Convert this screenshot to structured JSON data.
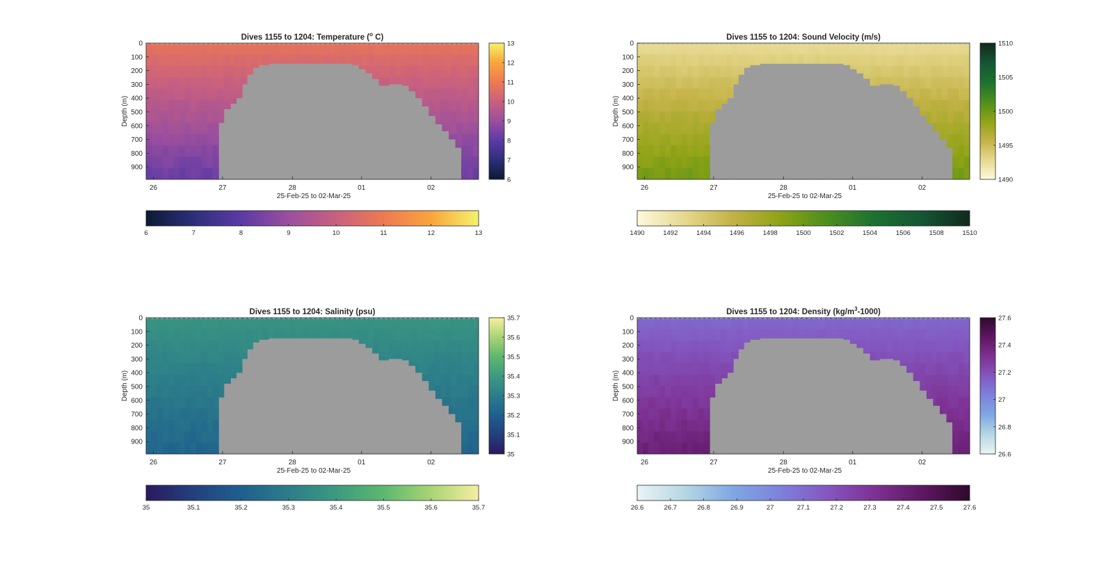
{
  "chart_data": [
    {
      "type": "heatmap",
      "title_main": "Dives 1155 to 1204: Temperature (",
      "title_sup": "o",
      "title_end": " C)",
      "ylabel": "Depth (m)",
      "xlabel": "25-Feb-25 to 02-Mar-25",
      "x_ticks": [
        "26",
        "27",
        "28",
        "01",
        "02"
      ],
      "y_ticks": [
        "0",
        "100",
        "200",
        "300",
        "400",
        "500",
        "600",
        "700",
        "800",
        "900"
      ],
      "ylim": [
        0,
        990
      ],
      "colorbar_ticks": [
        "6",
        "7",
        "8",
        "9",
        "10",
        "11",
        "12",
        "13"
      ],
      "horizontal_colorbar_ticks": [
        "6",
        "7",
        "8",
        "9",
        "10",
        "11",
        "12",
        "13"
      ],
      "clim": [
        6,
        13
      ],
      "colormap": [
        "#0b1a33",
        "#2d2f7a",
        "#5b3aa6",
        "#9a4f9e",
        "#c9607f",
        "#ee7a52",
        "#f9a53c",
        "#f4f36b"
      ],
      "surface_value": 10.8,
      "deep_value": 8.2,
      "nodata_color": "#9c9c9c"
    },
    {
      "type": "heatmap",
      "title_main": "Dives 1155 to 1204: Sound Velocity (m/s)",
      "ylabel": "Depth (m)",
      "xlabel": "25-Feb-25 to 02-Mar-25",
      "x_ticks": [
        "26",
        "27",
        "28",
        "01",
        "02"
      ],
      "y_ticks": [
        "0",
        "100",
        "200",
        "300",
        "400",
        "500",
        "600",
        "700",
        "800",
        "900"
      ],
      "ylim": [
        0,
        990
      ],
      "colorbar_ticks": [
        "1490",
        "1495",
        "1500",
        "1505",
        "1510"
      ],
      "horizontal_colorbar_ticks": [
        "1490",
        "1492",
        "1494",
        "1496",
        "1498",
        "1500",
        "1502",
        "1504",
        "1506",
        "1508",
        "1510"
      ],
      "clim": [
        1490,
        1510
      ],
      "colormap": [
        "#fdf9dc",
        "#e6d88e",
        "#c3b246",
        "#8fa315",
        "#4c8e1e",
        "#1c7130",
        "#155533",
        "#112a1c"
      ],
      "surface_value": 1492.5,
      "deep_value": 1499.8,
      "nodata_color": "#9c9c9c"
    },
    {
      "type": "heatmap",
      "title_main": "Dives 1155 to 1204: Salinity (psu)",
      "ylabel": "Depth (m)",
      "xlabel": "25-Feb-25 to 02-Mar-25",
      "x_ticks": [
        "26",
        "27",
        "28",
        "01",
        "02"
      ],
      "y_ticks": [
        "0",
        "100",
        "200",
        "300",
        "400",
        "500",
        "600",
        "700",
        "800",
        "900"
      ],
      "ylim": [
        0,
        990
      ],
      "colorbar_ticks": [
        "35",
        "35.1",
        "35.2",
        "35.3",
        "35.4",
        "35.5",
        "35.6",
        "35.7"
      ],
      "horizontal_colorbar_ticks": [
        "35",
        "35.1",
        "35.2",
        "35.3",
        "35.4",
        "35.5",
        "35.6",
        "35.7"
      ],
      "clim": [
        35,
        35.7
      ],
      "colormap": [
        "#2a1a5e",
        "#23407e",
        "#1f5f8e",
        "#2c7d8a",
        "#3c9a80",
        "#5cb86e",
        "#a9d474",
        "#f6eea2"
      ],
      "surface_value": 35.38,
      "deep_value": 35.22,
      "nodata_color": "#9c9c9c"
    },
    {
      "type": "heatmap",
      "title_main": "Dives 1155 to 1204: Density (kg/m",
      "title_sup": "3",
      "title_end": "-1000)",
      "ylabel": "Depth (m)",
      "xlabel": "25-Feb-25 to 02-Mar-25",
      "x_ticks": [
        "26",
        "27",
        "28",
        "01",
        "02"
      ],
      "y_ticks": [
        "0",
        "100",
        "200",
        "300",
        "400",
        "500",
        "600",
        "700",
        "800",
        "900"
      ],
      "ylim": [
        0,
        990
      ],
      "colorbar_ticks": [
        "26.6",
        "26.8",
        "27",
        "27.2",
        "27.4",
        "27.6"
      ],
      "horizontal_colorbar_ticks": [
        "26.6",
        "26.7",
        "26.8",
        "26.9",
        "27",
        "27.1",
        "27.2",
        "27.3",
        "27.4",
        "27.5",
        "27.6"
      ],
      "clim": [
        26.6,
        27.6
      ],
      "colormap": [
        "#eaf4f4",
        "#b6d7e4",
        "#7fa8e3",
        "#7d82dc",
        "#8457c0",
        "#7e3192",
        "#5e1762",
        "#2e0a2b"
      ],
      "surface_value": 27.11,
      "deep_value": 27.4,
      "nodata_color": "#9c9c9c"
    }
  ]
}
